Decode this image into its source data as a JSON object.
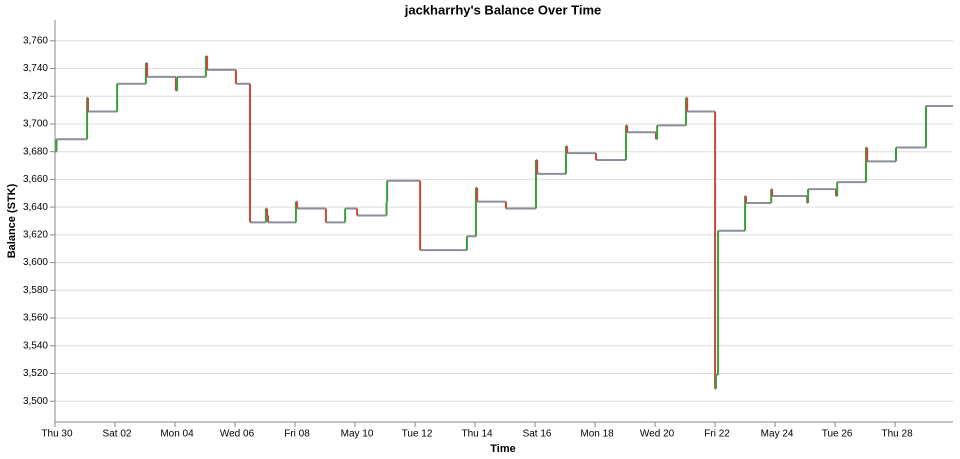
{
  "chart_data": {
    "type": "step",
    "title": "jackharrhy's Balance Over Time",
    "x_label": "Time",
    "y_label": "Balance (STK)",
    "up_color": "#3a9e3a",
    "down_color": "#c9473d",
    "flat_color": "#8a8f9b",
    "grid": true,
    "xlim": [
      0,
      29.93
    ],
    "ylim": [
      3485,
      3775
    ],
    "xticks": [
      {
        "value": 0,
        "label": "Thu 30"
      },
      {
        "value": 2,
        "label": "Sat 02"
      },
      {
        "value": 4,
        "label": "Mon 04"
      },
      {
        "value": 6,
        "label": "Wed 06"
      },
      {
        "value": 8,
        "label": "Fri 08"
      },
      {
        "value": 10,
        "label": "May 10"
      },
      {
        "value": 12,
        "label": "Tue 12"
      },
      {
        "value": 14,
        "label": "Thu 14"
      },
      {
        "value": 16,
        "label": "Sat 16"
      },
      {
        "value": 18,
        "label": "Mon 18"
      },
      {
        "value": 20,
        "label": "Wed 20"
      },
      {
        "value": 22,
        "label": "Fri 22"
      },
      {
        "value": 24,
        "label": "May 24"
      },
      {
        "value": 26,
        "label": "Tue 26"
      },
      {
        "value": 28,
        "label": "Thu 28"
      }
    ],
    "yticks": [
      {
        "value": 3500,
        "label": "3,500"
      },
      {
        "value": 3520,
        "label": "3,520"
      },
      {
        "value": 3540,
        "label": "3,540"
      },
      {
        "value": 3560,
        "label": "3,560"
      },
      {
        "value": 3580,
        "label": "3,580"
      },
      {
        "value": 3600,
        "label": "3,600"
      },
      {
        "value": 3620,
        "label": "3,620"
      },
      {
        "value": 3640,
        "label": "3,640"
      },
      {
        "value": 3660,
        "label": "3,660"
      },
      {
        "value": 3680,
        "label": "3,680"
      },
      {
        "value": 3700,
        "label": "3,700"
      },
      {
        "value": 3720,
        "label": "3,720"
      },
      {
        "value": 3740,
        "label": "3,740"
      },
      {
        "value": 3760,
        "label": "3,760"
      }
    ],
    "x": [
      0,
      0.05,
      1.07,
      1.1,
      2.07,
      3.03,
      3.07,
      4.03,
      4.07,
      5.03,
      5.07,
      6.03,
      6.5,
      7.03,
      7.07,
      7.1,
      8.03,
      8.07,
      9.03,
      9.67,
      10.07,
      11.05,
      11.07,
      12.17,
      13.73,
      14.03,
      14.07,
      15.03,
      16.03,
      16.07,
      17.03,
      17.07,
      18.03,
      19.03,
      19.07,
      20.03,
      20.07,
      21.03,
      21.07,
      22.0,
      22.03,
      22.1,
      23.0,
      23.03,
      23.87,
      23.9,
      25.07,
      25.1,
      26.03,
      26.07,
      27.03,
      27.07,
      28.03,
      29.03
    ],
    "values": [
      3680,
      3689,
      3719,
      3709,
      3729,
      3744,
      3734,
      3724,
      3734,
      3749,
      3739,
      3729,
      3629,
      3639,
      3634,
      3629,
      3644,
      3639,
      3629,
      3639,
      3634,
      3644,
      3659,
      3609,
      3619,
      3654,
      3644,
      3639,
      3674,
      3664,
      3684,
      3679,
      3674,
      3699,
      3694,
      3689,
      3699,
      3719,
      3709,
      3509,
      3519,
      3623,
      3648,
      3643,
      3653,
      3648,
      3643,
      3653,
      3648,
      3658,
      3683,
      3673,
      3683,
      3713
    ]
  }
}
